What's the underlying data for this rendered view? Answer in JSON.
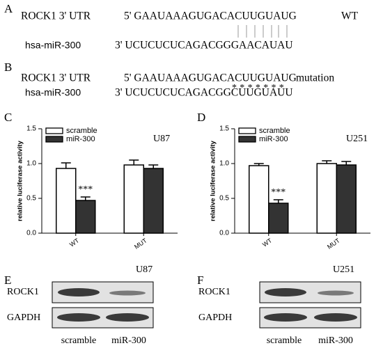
{
  "panel_a": {
    "letter": "A",
    "utr_label": "ROCK1 3' UTR",
    "utr_seq": "5' GAAUAAAGUGACACUUGUAUG",
    "utr_tag": "WT",
    "mir_label": "hsa-miR-300",
    "mir_seq": "3' UCUCUCUCAGACGGGAACAUAU"
  },
  "panel_b": {
    "letter": "B",
    "utr_label": "ROCK1 3' UTR",
    "utr_seq": "5' GAAUAAAGUGACACUUGUAUG",
    "utr_tag": "mutation",
    "marks": "*******",
    "mir_label": "hsa-miR-300",
    "mir_seq": "3' UCUCUCUCAGACGGCUUGUAUU"
  },
  "chart_data": [
    {
      "type": "bar",
      "letter": "C",
      "annotation": "U87",
      "ylabel": "relative luciferase activity",
      "categories": [
        "WT",
        "MUT"
      ],
      "series": [
        {
          "name": "scramble",
          "color": "#ffffff",
          "values": [
            0.93,
            0.98
          ],
          "errors": [
            0.08,
            0.07
          ]
        },
        {
          "name": "miR-300",
          "color": "#333333",
          "values": [
            0.47,
            0.93
          ],
          "errors": [
            0.05,
            0.05
          ],
          "significance": [
            "***",
            null
          ]
        }
      ],
      "ylim": [
        0,
        1.5
      ],
      "yticks": [
        {
          "value": 0,
          "label": "0.0"
        },
        0.5,
        {
          "value": 1,
          "label": "1.0"
        },
        1.5
      ],
      "legend": "upper left"
    },
    {
      "type": "bar",
      "letter": "D",
      "annotation": "U251",
      "ylabel": "relative luciferase activity",
      "categories": [
        "WT",
        "MUT"
      ],
      "series": [
        {
          "name": "scramble",
          "color": "#ffffff",
          "values": [
            0.97,
            1.0
          ],
          "errors": [
            0.03,
            0.04
          ]
        },
        {
          "name": "miR-300",
          "color": "#333333",
          "values": [
            0.43,
            0.98
          ],
          "errors": [
            0.05,
            0.05
          ],
          "significance": [
            "***",
            null
          ]
        }
      ],
      "ylim": [
        0,
        1.5
      ],
      "yticks": [
        {
          "value": 0,
          "label": "0.0"
        },
        0.5,
        {
          "value": 1,
          "label": "1.0"
        },
        1.5
      ],
      "legend": "upper left"
    }
  ],
  "blots": [
    {
      "letter": "E",
      "cell_line": "U87",
      "proteins": [
        "ROCK1",
        "GAPDH"
      ],
      "lanes": [
        "scramble",
        "miR-300"
      ]
    },
    {
      "letter": "F",
      "cell_line": "U251",
      "proteins": [
        "ROCK1",
        "GAPDH"
      ],
      "lanes": [
        "scramble",
        "miR-300"
      ]
    }
  ]
}
